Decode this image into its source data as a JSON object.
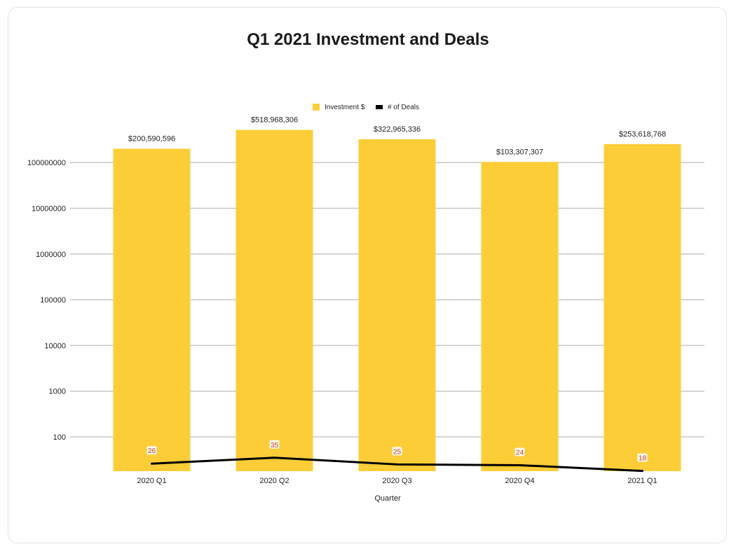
{
  "chart_data": {
    "type": "bar",
    "title": "Q1 2021 Investment and Deals",
    "xlabel": "Quarter",
    "ylabel": "",
    "y_scale": "log",
    "ylim": [
      18,
      500000000
    ],
    "yticks": [
      100,
      1000,
      10000,
      100000,
      1000000,
      10000000,
      100000000
    ],
    "ytick_labels": [
      "100",
      "1000",
      "10000",
      "100000",
      "1000000",
      "10000000",
      "100000000"
    ],
    "grid": true,
    "legend_position": "top-center",
    "categories": [
      "2020 Q1",
      "2020 Q2",
      "2020 Q3",
      "2020 Q4",
      "2021 Q1"
    ],
    "series": [
      {
        "name": "Investment $",
        "type": "bar",
        "color": "#fdcd38",
        "values": [
          200590596,
          518968306,
          322965336,
          103307307,
          253618768
        ],
        "data_labels": [
          "$200,590,596",
          "$518,968,306",
          "$322,965,336",
          "$103,307,307",
          "$253,618,768"
        ]
      },
      {
        "name": "# of Deals",
        "type": "line",
        "color": "#000000",
        "values": [
          26,
          35,
          25,
          24,
          18
        ],
        "data_labels": [
          "26",
          "35",
          "25",
          "24",
          "18"
        ]
      }
    ]
  }
}
